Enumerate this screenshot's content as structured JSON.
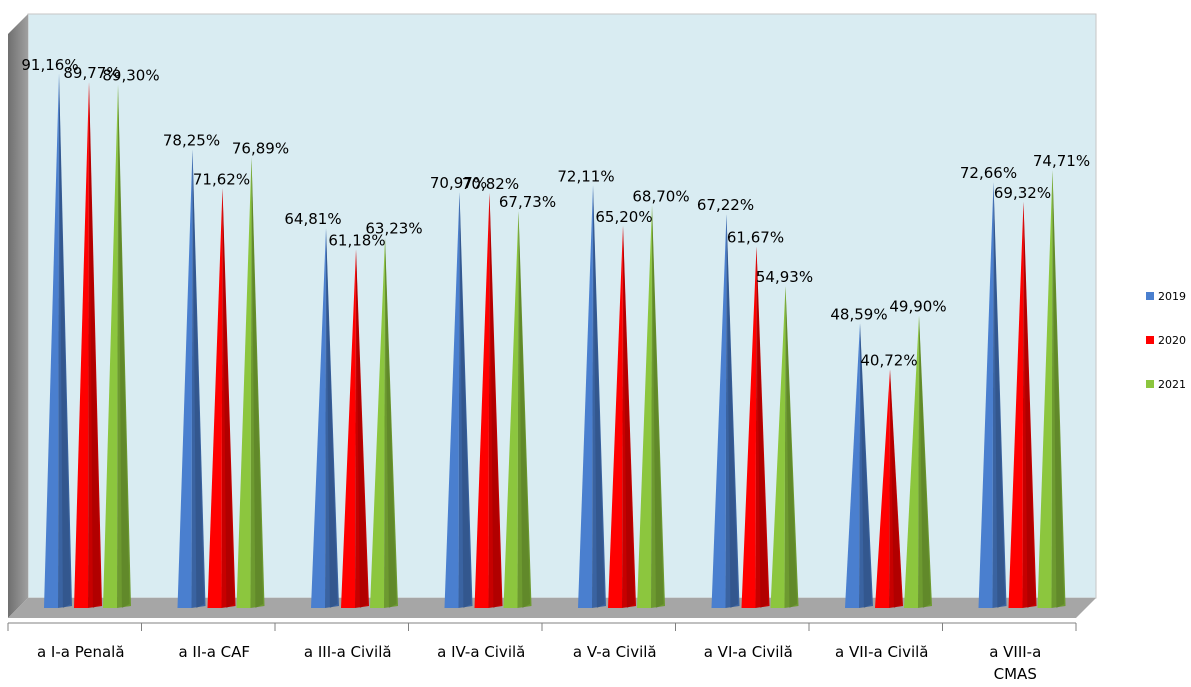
{
  "chart_data": {
    "type": "bar",
    "style": "3d-cone",
    "categories": [
      [
        "a I-a Penală"
      ],
      [
        "a II-a CAF"
      ],
      [
        "a III-a Civilă"
      ],
      [
        "a IV-a Civilă"
      ],
      [
        "a V-a Civilă"
      ],
      [
        "a VI-a Civilă"
      ],
      [
        "a VII-a  Civilă"
      ],
      [
        "a VIII-a",
        "CMAS"
      ]
    ],
    "series": [
      {
        "name": "2019",
        "color": "#4a7fcf",
        "values": [
          91.16,
          78.25,
          64.81,
          70.97,
          72.11,
          67.22,
          48.59,
          72.66
        ],
        "labels": [
          "91,16%",
          "78,25%",
          "64,81%",
          "70,97%",
          "72,11%",
          "67,22%",
          "48,59%",
          "72,66%"
        ]
      },
      {
        "name": "2020",
        "color": "#ff0000",
        "values": [
          89.77,
          71.62,
          61.18,
          70.82,
          65.2,
          61.67,
          40.72,
          69.32
        ],
        "labels": [
          "89,77%",
          "71,62%",
          "61,18%",
          "70,82%",
          "65,20%",
          "61,67%",
          "40,72%",
          "69,32%"
        ]
      },
      {
        "name": "2021",
        "color": "#8cc63e",
        "values": [
          89.3,
          76.89,
          63.23,
          67.73,
          68.7,
          54.93,
          49.9,
          74.71
        ],
        "labels": [
          "89,30%",
          "76,89%",
          "63,23%",
          "67,73%",
          "68,70%",
          "54,93%",
          "49,90%",
          "74,71%"
        ]
      }
    ],
    "ylim": [
      0,
      100
    ],
    "grid": false,
    "legend": "right",
    "background_color": "#d9ecf2",
    "floor_color": "#a6a6a6",
    "wall_color": "#8c8c8c"
  }
}
